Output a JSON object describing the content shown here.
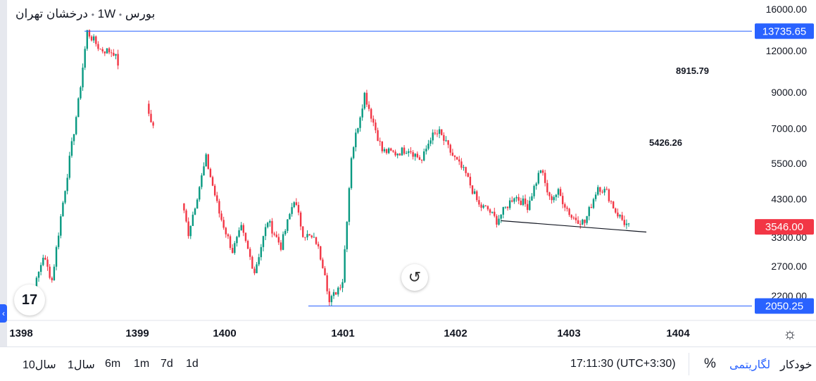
{
  "header": {
    "symbol_name": "درخشان تهران",
    "interval": "1W",
    "exchange": "بورس",
    "separator": "•"
  },
  "chart_data": {
    "type": "candlestick",
    "scale": "logarithmic",
    "y_ticks": [
      "16000.00",
      "12000.00",
      "9000.00",
      "7000.00",
      "5500.00",
      "4300.00",
      "3300.00",
      "2700.00",
      "2200.00"
    ],
    "x_ticks": [
      "1398",
      "1399",
      "1400",
      "1401",
      "1402",
      "1403",
      "1404"
    ],
    "price_lines": [
      {
        "label": "13735.65",
        "value": 13735.65,
        "color": "#2962ff"
      },
      {
        "label": "2050.25",
        "value": 2050.25,
        "color": "#2962ff"
      }
    ],
    "last_price": {
      "label": "3546.00",
      "value": 3546.0,
      "color": "#f23645"
    },
    "annotations": [
      {
        "text": "8915.79"
      },
      {
        "text": "5426.26"
      }
    ],
    "trendline": {
      "from": {
        "x": "1402-W40",
        "y": 3700
      },
      "to": {
        "x": "1403-W48",
        "y": 3420
      }
    },
    "up_color": "#089981",
    "down_color": "#f23645",
    "path_weeks": [
      0,
      6,
      10,
      14,
      18,
      26,
      30,
      36,
      42,
      44,
      50,
      56,
      60,
      68,
      72,
      76,
      84,
      90,
      96,
      100,
      106,
      112,
      118,
      124,
      128,
      134,
      138,
      140,
      146,
      150,
      156,
      164,
      170,
      176,
      182,
      186,
      190,
      196,
      202,
      208,
      212,
      216,
      224,
      230,
      236,
      240,
      244,
      250,
      256,
      262,
      266,
      270,
      274,
      276
    ],
    "path_prices": [
      2150,
      2300,
      2900,
      2450,
      3800,
      8400,
      13700,
      12100,
      11900,
      11000,
      null,
      8500,
      7100,
      null,
      4500,
      3400,
      5700,
      3900,
      3000,
      3500,
      2600,
      3700,
      3100,
      4300,
      3400,
      3200,
      2600,
      2100,
      2450,
      5800,
      8900,
      6000,
      5900,
      6100,
      5600,
      6600,
      6800,
      5800,
      5100,
      4100,
      4000,
      3700,
      4400,
      4100,
      5300,
      4300,
      4500,
      3800,
      3650,
      4700,
      4500,
      3950,
      3650,
      3546
    ]
  },
  "bottom_bar": {
    "ranges": [
      "10سال",
      "1سال",
      "6m",
      "1m",
      "7d",
      "1d"
    ],
    "time": "17:11:30",
    "timezone": "(UTC+3:30)",
    "percent_label": "%",
    "log_label": "لگاریتمی",
    "auto_label": "خودکار"
  },
  "colors": {
    "accent": "#2962ff",
    "axis_line": "#e0e3eb"
  }
}
